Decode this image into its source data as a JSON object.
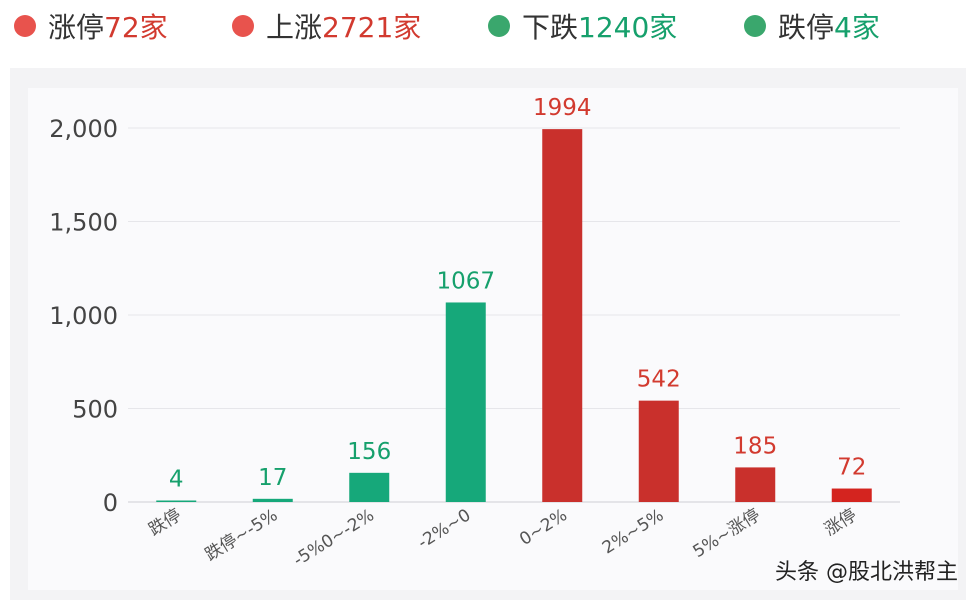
{
  "legend": [
    {
      "prefix": "涨停",
      "value": "72家",
      "dot_color": "#e8534d",
      "value_color": "#d23a2f"
    },
    {
      "prefix": "上涨",
      "value": "2721家",
      "dot_color": "#e8534d",
      "value_color": "#d23a2f"
    },
    {
      "prefix": "下跌",
      "value": "1240家",
      "dot_color": "#3aa76d",
      "value_color": "#16a06c"
    },
    {
      "prefix": "跌停",
      "value": "4家",
      "dot_color": "#3aa76d",
      "value_color": "#16a06c"
    }
  ],
  "watermark": "头条 @股北洪帮主",
  "chart_data": {
    "type": "bar",
    "title": "",
    "xlabel": "",
    "ylabel": "",
    "categories": [
      "跌停",
      "跌停~-5%",
      "-5%0~-2%",
      "-2%~0",
      "0~2%",
      "2%~5%",
      "5%~涨停",
      "涨停"
    ],
    "values": [
      4,
      17,
      156,
      1067,
      1994,
      542,
      185,
      72
    ],
    "bar_colors": [
      "#16a87a",
      "#16a87a",
      "#16a87a",
      "#16a87a",
      "#c9302c",
      "#c9302c",
      "#c9302c",
      "#d4241f"
    ],
    "label_colors": [
      "#16a06c",
      "#16a06c",
      "#16a06c",
      "#16a06c",
      "#d23a2f",
      "#d23a2f",
      "#d23a2f",
      "#d23a2f"
    ],
    "ylim": [
      0,
      2000
    ],
    "yticks": [
      0,
      500,
      1000,
      1500,
      2000
    ],
    "ytick_labels": [
      "0",
      "500",
      "1,000",
      "1,500",
      "2,000"
    ],
    "grid": true,
    "legend_position": "top"
  }
}
